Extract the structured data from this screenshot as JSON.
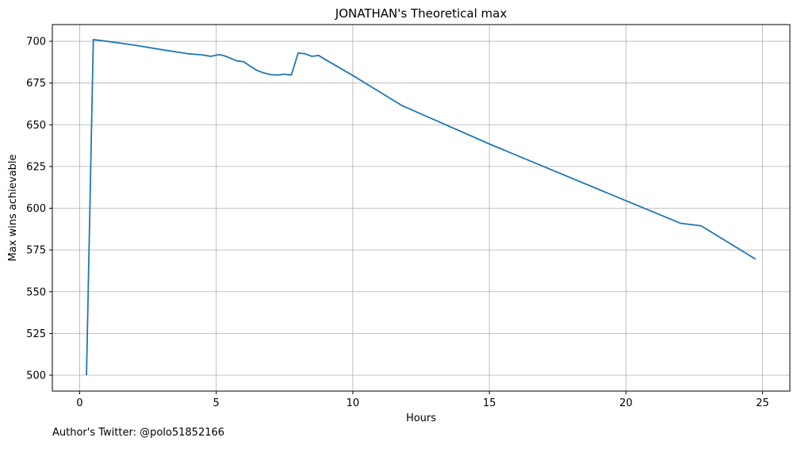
{
  "chart_data": {
    "type": "line",
    "title": "JONATHAN's Theoretical max",
    "xlabel": "Hours",
    "ylabel": "Max wins achievable",
    "xlim": [
      -1,
      26
    ],
    "ylim": [
      490.5,
      710
    ],
    "xticks": [
      0,
      5,
      10,
      15,
      20,
      25
    ],
    "yticks": [
      500,
      525,
      550,
      575,
      600,
      625,
      650,
      675,
      700
    ],
    "grid": true,
    "line_color": "#1f77b4",
    "series": [
      {
        "x": [
          0.25,
          0.5,
          1.0,
          2.0,
          3.0,
          4.0,
          4.5,
          4.8,
          5.1,
          5.3,
          5.5,
          5.75,
          6.0,
          6.25,
          6.5,
          6.75,
          7.0,
          7.25,
          7.5,
          7.75,
          8.0,
          8.25,
          8.5,
          8.75,
          9.0,
          10.0,
          11.0,
          11.8,
          15.0,
          20.0,
          22.0,
          22.75,
          24.75
        ],
        "y": [
          500,
          701,
          700,
          697.7,
          695,
          692.5,
          691.8,
          691,
          692,
          691.3,
          690,
          688.3,
          687.8,
          685,
          682.5,
          681,
          680,
          679.8,
          680.3,
          679.8,
          693,
          692.5,
          691,
          691.5,
          689,
          679.5,
          669.5,
          661.5,
          638.5,
          604.5,
          591,
          589.5,
          569.5
        ]
      }
    ]
  },
  "footnote": "Author's Twitter: @polo51852166"
}
